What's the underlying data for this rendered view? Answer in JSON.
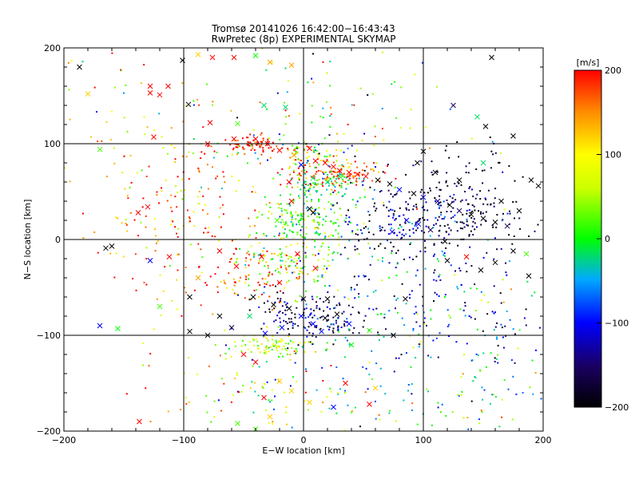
{
  "chart_data": {
    "type": "scatter",
    "title": "Tromsø 20141026 16:42:00−16:43:43",
    "subtitle": "RwPretec (8p) EXPERIMENTAL SKYMAP",
    "xlabel": "E−W location [km]",
    "ylabel": "N−S location [km]",
    "xlim": [
      -200,
      200
    ],
    "ylim": [
      -200,
      200
    ],
    "xticks": [
      "−200",
      "−100",
      "0",
      "100",
      "200"
    ],
    "yticks": [
      "−200",
      "−100",
      "0",
      "100",
      "200"
    ],
    "grid": true,
    "colorbar": {
      "label": "[m/s]",
      "range": [
        -200,
        200
      ],
      "ticks": [
        "200",
        "100",
        "0",
        "−100",
        "−200"
      ],
      "colormap": [
        "#000000",
        "#1a0060",
        "#0000ff",
        "#00aaff",
        "#00ff00",
        "#ffff00",
        "#ff8800",
        "#ff0000"
      ]
    },
    "series": [
      {
        "marker": "cross",
        "points": [
          [
            -187,
            180,
            -200
          ],
          [
            -180,
            152,
            120
          ],
          [
            -128,
            160,
            200
          ],
          [
            -128,
            153,
            200
          ],
          [
            -120,
            151,
            200
          ],
          [
            -113,
            160,
            200
          ],
          [
            -101,
            187,
            -200
          ],
          [
            -96,
            141,
            -200
          ],
          [
            -88,
            193,
            120
          ],
          [
            -76,
            190,
            200
          ],
          [
            -58,
            190,
            200
          ],
          [
            -78,
            122,
            200
          ],
          [
            -40,
            192,
            0
          ],
          [
            -28,
            185,
            140
          ],
          [
            -15,
            138,
            -20
          ],
          [
            -55,
            121,
            20
          ],
          [
            -33,
            140,
            -20
          ],
          [
            -10,
            182,
            140
          ],
          [
            -170,
            94,
            20
          ],
          [
            -125,
            107,
            200
          ],
          [
            -80,
            100,
            200
          ],
          [
            -58,
            105,
            200
          ],
          [
            -40,
            105,
            200
          ],
          [
            -30,
            100,
            200
          ],
          [
            -20,
            93,
            200
          ],
          [
            -8,
            88,
            140
          ],
          [
            5,
            95,
            200
          ],
          [
            10,
            82,
            200
          ],
          [
            18,
            80,
            200
          ],
          [
            25,
            76,
            200
          ],
          [
            30,
            72,
            200
          ],
          [
            38,
            70,
            200
          ],
          [
            45,
            68,
            200
          ],
          [
            52,
            66,
            200
          ],
          [
            30,
            66,
            -20
          ],
          [
            20,
            60,
            -20
          ],
          [
            8,
            64,
            -20
          ],
          [
            62,
            62,
            -200
          ],
          [
            72,
            58,
            -200
          ],
          [
            80,
            52,
            -100
          ],
          [
            92,
            48,
            -200
          ],
          [
            100,
            44,
            -100
          ],
          [
            112,
            40,
            -140
          ],
          [
            122,
            36,
            -200
          ],
          [
            130,
            30,
            -150
          ],
          [
            140,
            26,
            -200
          ],
          [
            150,
            22,
            -200
          ],
          [
            160,
            18,
            -200
          ],
          [
            170,
            14,
            -160
          ],
          [
            180,
            30,
            -200
          ],
          [
            165,
            40,
            -200
          ],
          [
            190,
            62,
            -200
          ],
          [
            196,
            56,
            -200
          ],
          [
            130,
            62,
            -200
          ],
          [
            110,
            70,
            -200
          ],
          [
            95,
            80,
            -200
          ],
          [
            100,
            92,
            -200
          ],
          [
            86,
            20,
            -100
          ],
          [
            96,
            16,
            -100
          ],
          [
            106,
            10,
            -150
          ],
          [
            74,
            8,
            -100
          ],
          [
            118,
            -2,
            -200
          ],
          [
            136,
            -18,
            200
          ],
          [
            148,
            -32,
            -200
          ],
          [
            160,
            -24,
            -200
          ],
          [
            175,
            -12,
            -200
          ],
          [
            188,
            -38,
            -200
          ],
          [
            -160,
            -7,
            -200
          ],
          [
            -128,
            -22,
            -100
          ],
          [
            -112,
            -18,
            200
          ],
          [
            -138,
            28,
            200
          ],
          [
            -130,
            34,
            200
          ],
          [
            -88,
            -40,
            140
          ],
          [
            -70,
            -12,
            200
          ],
          [
            -56,
            -28,
            200
          ],
          [
            -42,
            -60,
            -200
          ],
          [
            -25,
            -68,
            -200
          ],
          [
            -12,
            -72,
            -200
          ],
          [
            -2,
            -80,
            -100
          ],
          [
            8,
            -88,
            -100
          ],
          [
            18,
            -82,
            -200
          ],
          [
            28,
            -78,
            -200
          ],
          [
            38,
            -88,
            -100
          ],
          [
            15,
            -96,
            -100
          ],
          [
            -18,
            -92,
            -100
          ],
          [
            -32,
            -98,
            -100
          ],
          [
            -60,
            -92,
            -160
          ],
          [
            -80,
            -100,
            -200
          ],
          [
            -95,
            -96,
            -200
          ],
          [
            -120,
            -70,
            20
          ],
          [
            -170,
            -90,
            -100
          ],
          [
            -155,
            -93,
            0
          ],
          [
            -50,
            -120,
            200
          ],
          [
            -40,
            -128,
            200
          ],
          [
            -20,
            -148,
            120
          ],
          [
            -10,
            -158,
            120
          ],
          [
            -33,
            -165,
            200
          ],
          [
            -28,
            -185,
            120
          ],
          [
            -40,
            -198,
            20
          ],
          [
            -55,
            -192,
            20
          ],
          [
            5,
            -170,
            120
          ],
          [
            25,
            -175,
            -100
          ],
          [
            35,
            -150,
            200
          ],
          [
            55,
            -172,
            200
          ],
          [
            60,
            -155,
            120
          ],
          [
            -95,
            -60,
            -200
          ],
          [
            -70,
            -80,
            -200
          ],
          [
            -137,
            -190,
            200
          ],
          [
            0,
            -62,
            -200
          ],
          [
            20,
            -62,
            -200
          ],
          [
            75,
            -100,
            -200
          ],
          [
            85,
            -62,
            -200
          ],
          [
            120,
            -22,
            -200
          ],
          [
            125,
            140,
            -150
          ],
          [
            145,
            128,
            -20
          ],
          [
            152,
            118,
            -200
          ],
          [
            157,
            190,
            -200
          ],
          [
            175,
            108,
            -200
          ],
          [
            150,
            80,
            -20
          ],
          [
            -165,
            -9,
            -200
          ],
          [
            186,
            -15,
            20
          ],
          [
            40,
            -110,
            0
          ],
          [
            55,
            -95,
            20
          ],
          [
            -45,
            -80,
            -20
          ],
          [
            -20,
            -45,
            200
          ],
          [
            10,
            -30,
            200
          ],
          [
            -5,
            -15,
            200
          ],
          [
            -35,
            -18,
            200
          ],
          [
            -22,
            20,
            20
          ],
          [
            -10,
            40,
            200
          ],
          [
            5,
            32,
            -200
          ],
          [
            -12,
            60,
            200
          ],
          [
            -2,
            78,
            -100
          ],
          [
            8,
            28,
            -200
          ]
        ]
      },
      {
        "marker": "dot",
        "clusters": [
          {
            "x": -40,
            "y": 100,
            "sx": 15,
            "sy": 5,
            "n": 70,
            "v": 200,
            "vs": 30
          },
          {
            "x": 5,
            "y": 90,
            "sx": 20,
            "sy": 8,
            "n": 70,
            "v": 80,
            "vs": 80
          },
          {
            "x": 30,
            "y": 68,
            "sx": 20,
            "sy": 8,
            "n": 120,
            "v": 180,
            "vs": 40
          },
          {
            "x": 15,
            "y": 60,
            "sx": 22,
            "sy": 8,
            "n": 90,
            "v": 0,
            "vs": 40
          },
          {
            "x": 0,
            "y": 22,
            "sx": 22,
            "sy": 14,
            "n": 150,
            "v": 20,
            "vs": 40
          },
          {
            "x": -10,
            "y": -20,
            "sx": 25,
            "sy": 20,
            "n": 160,
            "v": 30,
            "vs": 50
          },
          {
            "x": -40,
            "y": -30,
            "sx": 18,
            "sy": 18,
            "n": 70,
            "v": 180,
            "vs": 40
          },
          {
            "x": 5,
            "y": -80,
            "sx": 25,
            "sy": 12,
            "n": 150,
            "v": -150,
            "vs": 40
          },
          {
            "x": -25,
            "y": -110,
            "sx": 20,
            "sy": 6,
            "n": 90,
            "v": 60,
            "vs": 40
          },
          {
            "x": 90,
            "y": 20,
            "sx": 40,
            "sy": 25,
            "n": 220,
            "v": -140,
            "vs": 50
          },
          {
            "x": 130,
            "y": 40,
            "sx": 30,
            "sy": 30,
            "n": 140,
            "v": -180,
            "vs": 30
          },
          {
            "x": 100,
            "y": -60,
            "sx": 50,
            "sy": 40,
            "n": 160,
            "v": -80,
            "vs": 60
          },
          {
            "x": 60,
            "y": -130,
            "sx": 50,
            "sy": 50,
            "n": 110,
            "v": -40,
            "vs": 80
          },
          {
            "x": -100,
            "y": 0,
            "sx": 40,
            "sy": 50,
            "n": 130,
            "v": 160,
            "vs": 60
          },
          {
            "x": -140,
            "y": 120,
            "sx": 40,
            "sy": 60,
            "n": 60,
            "v": 100,
            "vs": 100
          },
          {
            "x": 30,
            "y": 130,
            "sx": 60,
            "sy": 40,
            "n": 110,
            "v": 20,
            "vs": 100
          },
          {
            "x": -40,
            "y": -160,
            "sx": 50,
            "sy": 25,
            "n": 90,
            "v": 80,
            "vs": 80
          },
          {
            "x": 160,
            "y": -100,
            "sx": 25,
            "sy": 50,
            "n": 60,
            "v": -60,
            "vs": 100
          },
          {
            "x": 150,
            "y": -170,
            "sx": 35,
            "sy": 20,
            "n": 40,
            "v": 0,
            "vs": 100
          },
          {
            "x": -80,
            "y": 60,
            "sx": 30,
            "sy": 30,
            "n": 70,
            "v": 140,
            "vs": 70
          }
        ]
      }
    ]
  }
}
